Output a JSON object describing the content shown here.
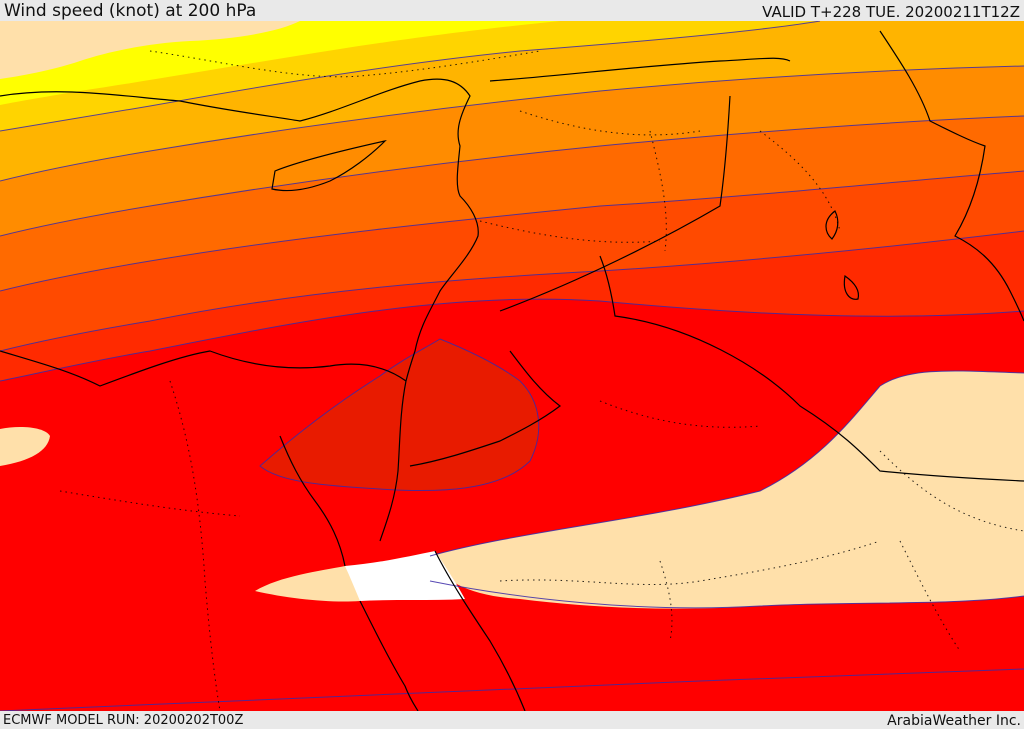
{
  "header": {
    "title": "Wind speed (knot) at 200 hPa",
    "valid_time": "VALID T+228 TUE. 20200211T12Z"
  },
  "footer": {
    "model_run": "ECMWF MODEL RUN: 20200202T00Z",
    "credit": "ArabiaWeather Inc."
  },
  "map": {
    "variable": "wind speed",
    "level_hpa": 200,
    "colors": {
      "band_lowest": "#ffe0aa",
      "band_1": "#ffff00",
      "band_2": "#ffd400",
      "band_3": "#ffb400",
      "band_4": "#ff8c00",
      "band_5": "#ff6a00",
      "band_6": "#ff4a00",
      "band_7": "#ff2a00",
      "band_8": "#ff0000",
      "band_9": "#e81b00",
      "no_data": "#ffffff",
      "contour_line": "#3a2aa8",
      "coastline": "#000000"
    }
  }
}
